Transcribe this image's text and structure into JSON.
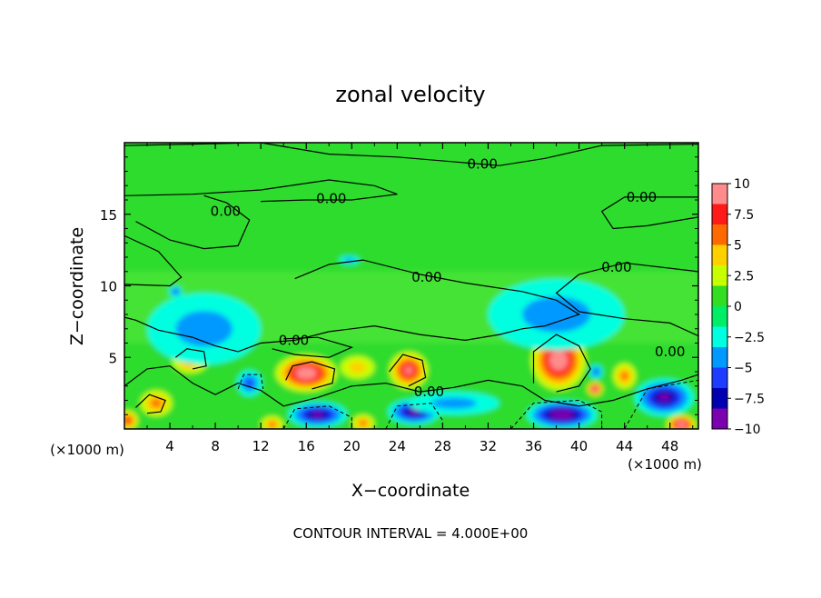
{
  "chart_data": {
    "type": "heatmap",
    "title": "zonal velocity",
    "xlabel": "X−coordinate",
    "ylabel": "Z−coordinate",
    "x_unit_left": "(×1000 m)",
    "x_unit_right": "(×1000 m)",
    "footer": "CONTOUR INTERVAL = 4.000E+00",
    "xlim": [
      0,
      50.5
    ],
    "ylim": [
      0,
      20
    ],
    "xticks": [
      4,
      8,
      12,
      16,
      20,
      24,
      28,
      32,
      36,
      40,
      44,
      48
    ],
    "yticks": [
      5,
      10,
      15
    ],
    "colorbar": {
      "ticks": [
        "10",
        "7.5",
        "5",
        "2.5",
        "0",
        "−2.5",
        "−5",
        "−7.5",
        "−10"
      ],
      "range": [
        -10,
        10
      ],
      "colors": [
        "#ff8c8c",
        "#ff1a1a",
        "#ff6a00",
        "#ffd000",
        "#c8ff00",
        "#33dd22",
        "#00ee66",
        "#00ffe0",
        "#0099ff",
        "#1e3cff",
        "#0000b0",
        "#7a00b0"
      ]
    },
    "contour_labels": [
      {
        "text": "0.00",
        "x": 31.5,
        "z": 18.5
      },
      {
        "text": "0.00",
        "x": 18.2,
        "z": 16.1
      },
      {
        "text": "0.00",
        "x": 8.9,
        "z": 15.2
      },
      {
        "text": "0.00",
        "x": 45.5,
        "z": 16.2
      },
      {
        "text": "0.00",
        "x": 26.6,
        "z": 10.6
      },
      {
        "text": "0.00",
        "x": 43.3,
        "z": 11.3
      },
      {
        "text": "0.00",
        "x": 14.9,
        "z": 6.2
      },
      {
        "text": "0.00",
        "x": 48.0,
        "z": 5.4
      },
      {
        "text": "0.00",
        "x": 26.8,
        "z": 2.6
      }
    ],
    "anomalies": [
      {
        "x": 16.0,
        "z": 3.9,
        "v": 8.5,
        "rx": 2.7,
        "rz": 1.3
      },
      {
        "x": 25.0,
        "z": 4.1,
        "v": 8.0,
        "rx": 1.7,
        "rz": 1.3
      },
      {
        "x": 38.2,
        "z": 4.8,
        "v": 9.0,
        "rx": 2.4,
        "rz": 2.1
      },
      {
        "x": 5.8,
        "z": 4.8,
        "v": 4.5,
        "rx": 1.6,
        "rz": 0.9
      },
      {
        "x": 41.4,
        "z": 2.8,
        "v": 8.5,
        "rx": 0.7,
        "rz": 0.5
      },
      {
        "x": 44.0,
        "z": 3.7,
        "v": 4.0,
        "rx": 1.0,
        "rz": 0.9
      },
      {
        "x": 2.8,
        "z": 1.8,
        "v": 4.5,
        "rx": 1.4,
        "rz": 0.9
      },
      {
        "x": 20.5,
        "z": 4.3,
        "v": 3.0,
        "rx": 1.5,
        "rz": 0.8
      },
      {
        "x": 0.3,
        "z": 0.6,
        "v": 6.0,
        "rx": 0.9,
        "rz": 0.7
      },
      {
        "x": 49.0,
        "z": 0.3,
        "v": 10.0,
        "rx": 1.3,
        "rz": 0.7
      },
      {
        "x": 13.0,
        "z": 0.3,
        "v": 5.0,
        "rx": 1.0,
        "rz": 0.6
      },
      {
        "x": 21.0,
        "z": 0.4,
        "v": 4.0,
        "rx": 1.0,
        "rz": 0.6
      },
      {
        "x": 17.0,
        "z": 1.0,
        "v": -7.5,
        "rx": 2.6,
        "rz": 0.9
      },
      {
        "x": 25.5,
        "z": 1.2,
        "v": -7.5,
        "rx": 2.3,
        "rz": 0.9
      },
      {
        "x": 38.5,
        "z": 1.0,
        "v": -9.5,
        "rx": 3.1,
        "rz": 1.0
      },
      {
        "x": 47.5,
        "z": 2.2,
        "v": -7.0,
        "rx": 2.6,
        "rz": 1.3
      },
      {
        "x": 11.0,
        "z": 3.2,
        "v": -4.5,
        "rx": 1.1,
        "rz": 0.9
      },
      {
        "x": 4.5,
        "z": 9.6,
        "v": -4.5,
        "rx": 0.6,
        "rz": 0.4
      },
      {
        "x": 41.5,
        "z": 4.0,
        "v": -4.5,
        "rx": 0.6,
        "rz": 0.5
      },
      {
        "x": 19.8,
        "z": 11.8,
        "v": -3.0,
        "rx": 0.9,
        "rz": 0.3
      },
      {
        "x": 7.0,
        "z": 7.0,
        "v": -2.5,
        "rx": 5.0,
        "rz": 2.5
      },
      {
        "x": 38.0,
        "z": 8.0,
        "v": -2.0,
        "rx": 6.0,
        "rz": 2.5
      },
      {
        "x": 29.0,
        "z": 1.8,
        "v": -2.5,
        "rx": 4.0,
        "rz": 0.8
      }
    ],
    "grid": false,
    "legend": "right"
  }
}
